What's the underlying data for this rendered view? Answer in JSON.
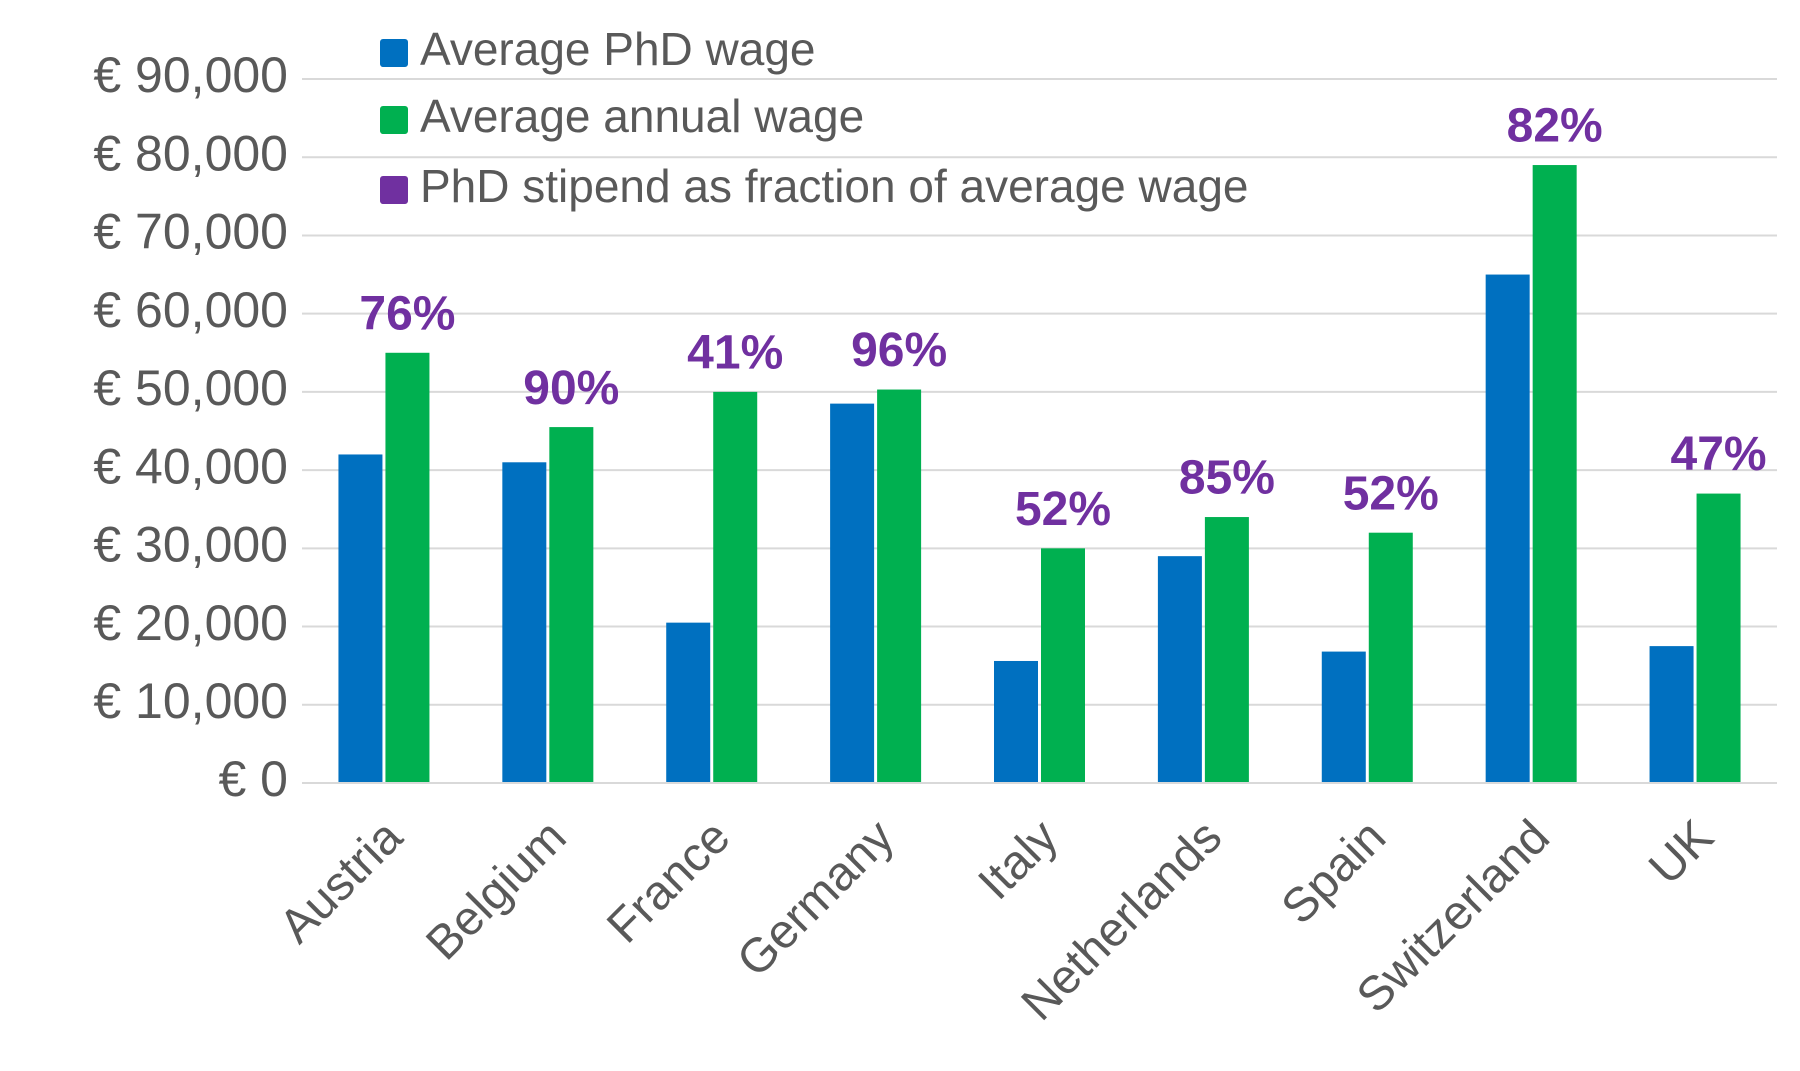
{
  "chart_data": {
    "type": "bar",
    "categories": [
      "Austria",
      "Belgium",
      "France",
      "Germany",
      "Italy",
      "Netherlands",
      "Spain",
      "Switzerland",
      "UK"
    ],
    "series": [
      {
        "name": "Average PhD wage",
        "color": "#0070c0",
        "values": [
          42000,
          41000,
          20500,
          48500,
          15600,
          29000,
          16800,
          65000,
          17500
        ]
      },
      {
        "name": "Average annual wage",
        "color": "#00b050",
        "values": [
          55000,
          45500,
          50000,
          50300,
          30000,
          34000,
          32000,
          79000,
          37000
        ]
      },
      {
        "name": "PhD stipend as fraction of average wage",
        "color": "#7030a0",
        "values": [
          76,
          90,
          41,
          96,
          52,
          85,
          52,
          82,
          47
        ],
        "value_labels": [
          "76%",
          "90%",
          "41%",
          "96%",
          "52%",
          "85%",
          "52%",
          "82%",
          "47%"
        ]
      }
    ],
    "ylim": [
      0,
      90000
    ],
    "yticks": [
      {
        "value": 0,
        "label": "€ 0"
      },
      {
        "value": 10000,
        "label": "€ 10,000"
      },
      {
        "value": 20000,
        "label": "€ 20,000"
      },
      {
        "value": 30000,
        "label": "€ 30,000"
      },
      {
        "value": 40000,
        "label": "€ 40,000"
      },
      {
        "value": 50000,
        "label": "€ 50,000"
      },
      {
        "value": 60000,
        "label": "€ 60,000"
      },
      {
        "value": 70000,
        "label": "€ 70,000"
      },
      {
        "value": 80000,
        "label": "€ 80,000"
      },
      {
        "value": 90000,
        "label": "€ 90,000"
      }
    ],
    "grid": true
  }
}
